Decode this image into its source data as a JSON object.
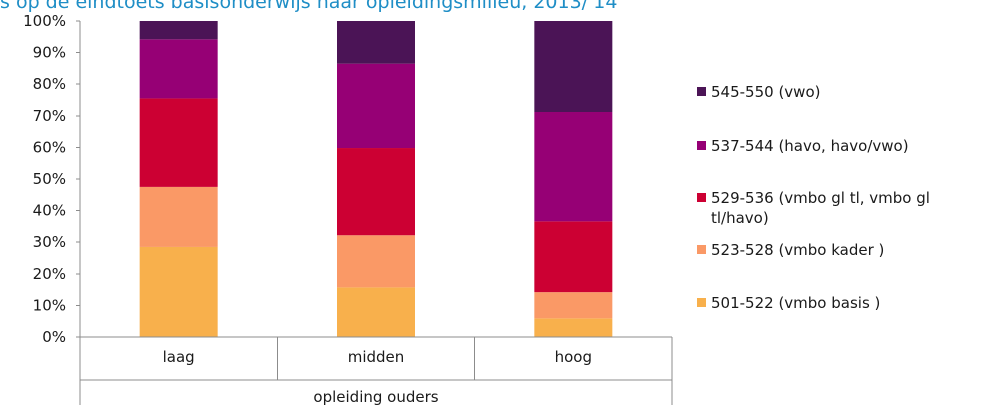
{
  "title": "s op de eindtoets basisonderwijs naar opleidingsmilieu, 2013/'14",
  "chart_data": {
    "type": "bar",
    "stacked": true,
    "categories": [
      "laag",
      "midden",
      "hoog"
    ],
    "group_label": "opleiding ouders",
    "ylim": [
      0,
      100
    ],
    "yticks": [
      "0%",
      "10%",
      "20%",
      "30%",
      "40%",
      "50%",
      "60%",
      "70%",
      "80%",
      "90%",
      "100%"
    ],
    "legend_position": "right",
    "series": [
      {
        "name": "501-522 (vmbo basis )",
        "color": "#f8b04c",
        "values": [
          28.5,
          15.7,
          5.9
        ]
      },
      {
        "name": "523-528  (vmbo kader )",
        "color": "#fa9966",
        "values": [
          19.0,
          16.5,
          8.3
        ]
      },
      {
        "name": "529-536 (vmbo gl tl, vmbo gl tl/havo)",
        "color": "#cc0033",
        "values": [
          28.0,
          27.6,
          22.4
        ]
      },
      {
        "name": "537-544 (havo, havo/vwo)",
        "color": "#960075",
        "values": [
          18.7,
          26.7,
          34.6
        ]
      },
      {
        "name": "545-550 (vwo)",
        "color": "#4b1456",
        "values": [
          5.8,
          13.5,
          28.8
        ]
      }
    ]
  }
}
